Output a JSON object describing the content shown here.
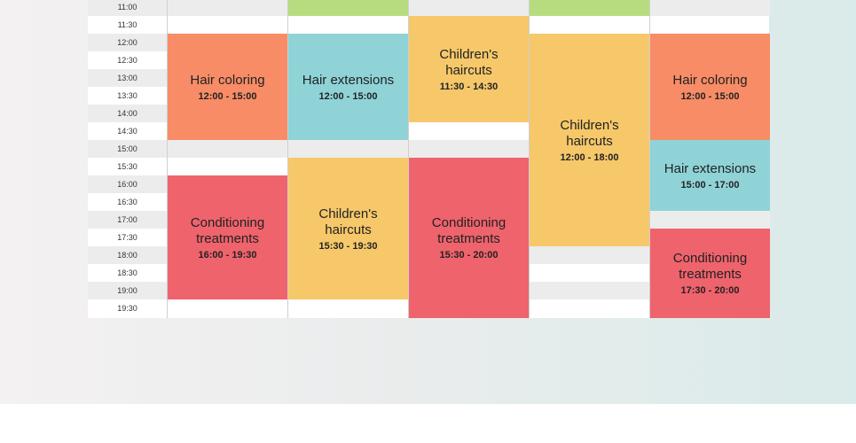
{
  "times": [
    "11:00",
    "11:30",
    "12:00",
    "12:30",
    "13:00",
    "13:30",
    "14:00",
    "14:30",
    "15:00",
    "15:30",
    "16:00",
    "16:30",
    "17:00",
    "17:30",
    "18:00",
    "18:30",
    "19:00",
    "19:30"
  ],
  "columns": [
    {
      "events": [
        {
          "name": "Hair coloring",
          "time": "12:00 - 15:00",
          "color": "#f78c66"
        },
        {
          "name": "Conditioning treatments",
          "time": "16:00 - 19:30",
          "color": "#ef636c"
        }
      ]
    },
    {
      "events": [
        {
          "name": "",
          "time": "",
          "color": "#b7dc7f"
        },
        {
          "name": "Hair extensions",
          "time": "12:00 - 15:00",
          "color": "#8fd3d7"
        },
        {
          "name": "Children's haircuts",
          "time": "15:30 - 19:30",
          "color": "#f6c86a"
        }
      ]
    },
    {
      "events": [
        {
          "name": "Children's haircuts",
          "time": "11:30 - 14:30",
          "color": "#f6c86a"
        },
        {
          "name": "Conditioning treatments",
          "time": "15:30 - 20:00",
          "color": "#ef636c"
        }
      ]
    },
    {
      "events": [
        {
          "name": "",
          "time": "",
          "color": "#b7dc7f"
        },
        {
          "name": "Children's haircuts",
          "time": "12:00 - 18:00",
          "color": "#f6c86a"
        }
      ]
    },
    {
      "events": [
        {
          "name": "Hair coloring",
          "time": "12:00 - 15:00",
          "color": "#f78c66"
        },
        {
          "name": "Hair extensions",
          "time": "15:00 - 17:00",
          "color": "#8fd3d7"
        },
        {
          "name": "Conditioning treatments",
          "time": "17:30 - 20:00",
          "color": "#ef636c"
        }
      ]
    }
  ]
}
